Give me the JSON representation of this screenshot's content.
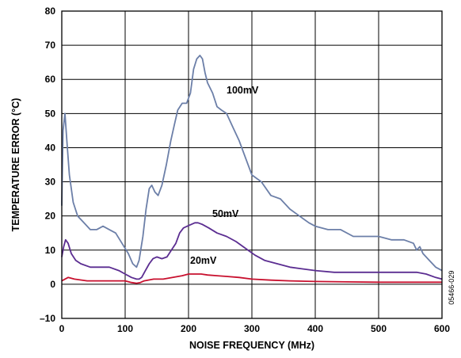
{
  "chart_data": {
    "type": "line",
    "xlabel": "NOISE FREQUENCY (MHz)",
    "ylabel": "TEMPERATURE ERROR (°C)",
    "xlim": [
      0,
      600
    ],
    "ylim": [
      -10,
      80
    ],
    "x_ticks": [
      "0",
      "100",
      "200",
      "300",
      "400",
      "500",
      "600"
    ],
    "y_ticks": [
      "–10",
      "0",
      "10",
      "20",
      "30",
      "40",
      "50",
      "60",
      "70",
      "80"
    ],
    "grid": true,
    "figure_id": "05466-029",
    "series": [
      {
        "name": "100mV",
        "color": "#6c7fa8",
        "x": [
          0,
          2,
          5,
          8,
          12,
          18,
          25,
          35,
          45,
          55,
          65,
          75,
          85,
          95,
          105,
          112,
          118,
          122,
          128,
          133,
          138,
          142,
          147,
          152,
          158,
          165,
          172,
          178,
          183,
          190,
          197,
          203,
          208,
          213,
          218,
          222,
          226,
          230,
          238,
          245,
          252,
          260,
          270,
          280,
          290,
          300,
          315,
          330,
          345,
          360,
          375,
          390,
          400,
          420,
          440,
          460,
          480,
          500,
          520,
          540,
          555,
          560,
          565,
          570,
          580,
          590,
          600
        ],
        "y": [
          23,
          45,
          50,
          42,
          32,
          24,
          20,
          18,
          16,
          16,
          17,
          16,
          15,
          12,
          9,
          6,
          5,
          7,
          14,
          22,
          28,
          29,
          27,
          26,
          29,
          35,
          42,
          47,
          51,
          53,
          53,
          56,
          63,
          66,
          67,
          66,
          62,
          59,
          56,
          52,
          51,
          50,
          46,
          42,
          37,
          32,
          30,
          26,
          25,
          22,
          20,
          18,
          17,
          16,
          16,
          14,
          14,
          14,
          13,
          13,
          12,
          10,
          11,
          9,
          7,
          5,
          4
        ]
      },
      {
        "name": "50mV",
        "color": "#5b2d91",
        "x": [
          0,
          3,
          6,
          10,
          15,
          22,
          30,
          45,
          60,
          75,
          90,
          100,
          110,
          118,
          122,
          126,
          132,
          138,
          144,
          150,
          158,
          166,
          173,
          180,
          186,
          192,
          198,
          204,
          210,
          215,
          222,
          232,
          245,
          260,
          275,
          290,
          305,
          320,
          340,
          360,
          380,
          400,
          430,
          460,
          500,
          540,
          560,
          575,
          590,
          600
        ],
        "y": [
          8,
          11,
          13,
          12,
          9,
          7,
          6,
          5,
          5,
          5,
          4,
          3,
          2,
          1.5,
          1.5,
          2,
          4,
          6,
          7.5,
          8,
          7.5,
          8,
          10,
          12,
          15,
          16.5,
          17,
          17.5,
          18,
          18,
          17.5,
          16.5,
          15,
          14,
          12.5,
          10.5,
          8.5,
          7,
          6,
          5,
          4.5,
          4,
          3.5,
          3.5,
          3.5,
          3.5,
          3.5,
          3,
          2,
          1.5
        ]
      },
      {
        "name": "20mV",
        "color": "#c8102e",
        "x": [
          0,
          10,
          20,
          40,
          60,
          80,
          100,
          110,
          118,
          124,
          130,
          145,
          160,
          175,
          190,
          200,
          210,
          220,
          230,
          245,
          260,
          280,
          300,
          330,
          360,
          400,
          450,
          500,
          550,
          600
        ],
        "y": [
          1,
          2,
          1.5,
          1,
          1,
          1,
          1,
          0.5,
          0.3,
          0.5,
          1,
          1.5,
          1.5,
          2,
          2.5,
          3,
          3,
          3,
          2.7,
          2.5,
          2.3,
          2,
          1.5,
          1.2,
          1,
          0.8,
          0.7,
          0.6,
          0.6,
          0.6
        ]
      }
    ]
  }
}
